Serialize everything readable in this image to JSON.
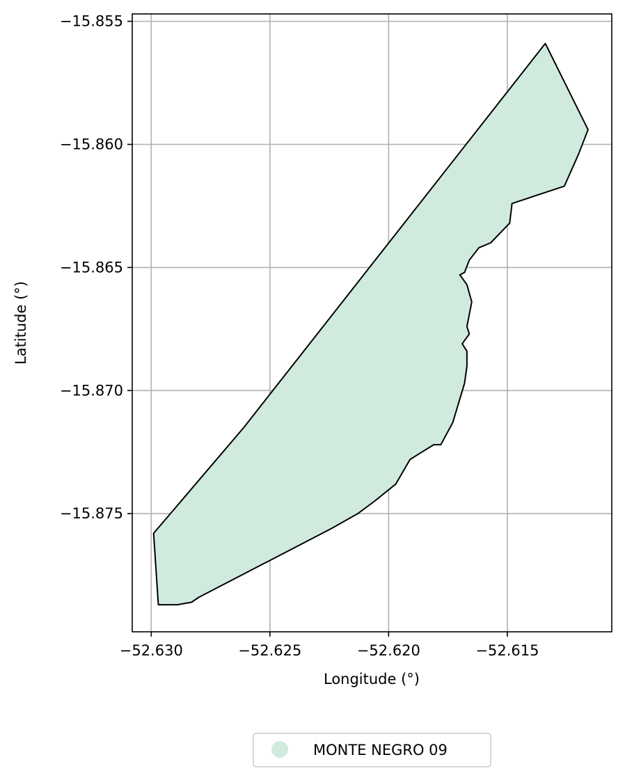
{
  "chart_data": {
    "type": "map",
    "xlabel": "Longitude (°)",
    "ylabel": "Latitude (°)",
    "xlim": [
      -52.6308,
      -52.6106
    ],
    "ylim": [
      -15.8798,
      -15.8547
    ],
    "x_ticks": [
      -52.63,
      -52.625,
      -52.62,
      -52.615
    ],
    "x_tick_labels": [
      "−52.630",
      "−52.625",
      "−52.620",
      "−52.615"
    ],
    "y_ticks": [
      -15.855,
      -15.86,
      -15.865,
      -15.87,
      -15.875
    ],
    "y_tick_labels": [
      "−15.855",
      "−15.860",
      "−15.865",
      "−15.870",
      "−15.875"
    ],
    "grid": true,
    "legend_placement": "bottom-center",
    "series": [
      {
        "name": "MONTE NEGRO 09",
        "fill": "#d0ebde",
        "stroke": "#000000",
        "polygon": [
          [
            -52.6134,
            -15.8559
          ],
          [
            -52.6116,
            -15.8594
          ],
          [
            -52.612,
            -15.8604
          ],
          [
            -52.6126,
            -15.8617
          ],
          [
            -52.6148,
            -15.8624
          ],
          [
            -52.6149,
            -15.8632
          ],
          [
            -52.6157,
            -15.864
          ],
          [
            -52.6162,
            -15.8642
          ],
          [
            -52.6166,
            -15.8647
          ],
          [
            -52.6168,
            -15.8652
          ],
          [
            -52.617,
            -15.8653
          ],
          [
            -52.6167,
            -15.8657
          ],
          [
            -52.6165,
            -15.8664
          ],
          [
            -52.6167,
            -15.8674
          ],
          [
            -52.6166,
            -15.8677
          ],
          [
            -52.6169,
            -15.8681
          ],
          [
            -52.6167,
            -15.8684
          ],
          [
            -52.6167,
            -15.869
          ],
          [
            -52.6168,
            -15.8697
          ],
          [
            -52.6173,
            -15.8713
          ],
          [
            -52.6178,
            -15.8722
          ],
          [
            -52.6181,
            -15.8722
          ],
          [
            -52.6186,
            -15.8725
          ],
          [
            -52.6191,
            -15.8728
          ],
          [
            -52.6197,
            -15.8738
          ],
          [
            -52.6206,
            -15.8745
          ],
          [
            -52.6213,
            -15.875
          ],
          [
            -52.6224,
            -15.8756
          ],
          [
            -52.628,
            -15.8784
          ],
          [
            -52.6283,
            -15.8786
          ],
          [
            -52.6289,
            -15.8787
          ],
          [
            -52.6297,
            -15.8787
          ],
          [
            -52.6299,
            -15.8758
          ],
          [
            -52.6261,
            -15.8715
          ],
          [
            -52.6134,
            -15.8559
          ]
        ]
      }
    ]
  }
}
